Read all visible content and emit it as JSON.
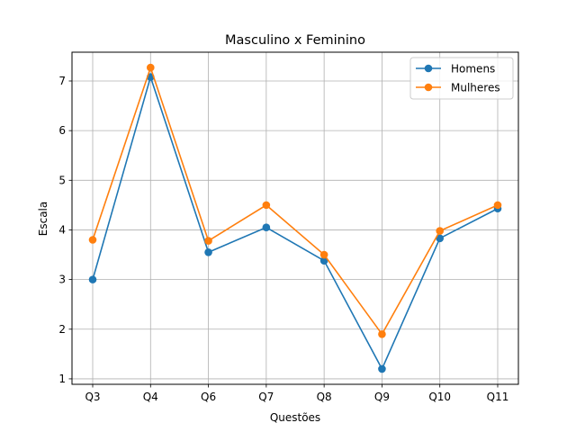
{
  "chart_data": {
    "type": "line",
    "title": "Masculino x Feminino",
    "xlabel": "Questões",
    "ylabel": "Escala",
    "categories": [
      "Q3",
      "Q4",
      "Q6",
      "Q7",
      "Q8",
      "Q9",
      "Q10",
      "Q11"
    ],
    "series": [
      {
        "name": "Homens",
        "color": "#1f77b4",
        "values": [
          3.0,
          7.08,
          3.55,
          4.05,
          3.38,
          1.2,
          3.83,
          4.43
        ]
      },
      {
        "name": "Mulheres",
        "color": "#ff7f0e",
        "values": [
          3.8,
          7.27,
          3.78,
          4.5,
          3.5,
          1.9,
          3.98,
          4.5
        ]
      }
    ],
    "yticks": [
      1,
      2,
      3,
      4,
      5,
      6,
      7
    ],
    "ylim": [
      0.89,
      7.58
    ],
    "grid": true,
    "legend_position": "top-right"
  }
}
